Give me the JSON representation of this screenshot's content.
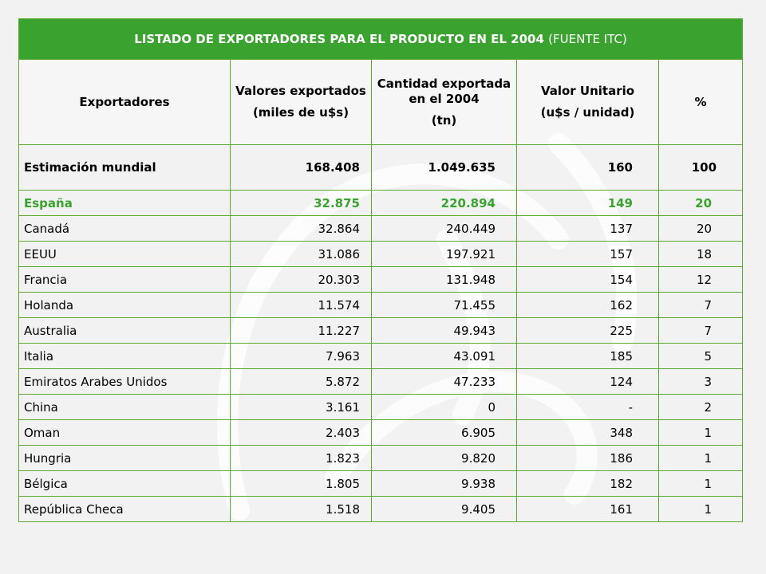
{
  "table": {
    "title_bold": "LISTADO DE EXPORTADORES PARA EL PRODUCTO EN EL 2004",
    "title_normal": "(FUENTE ITC)",
    "headers": [
      {
        "line1": "Exportadores",
        "line2": ""
      },
      {
        "line1": "Valores exportados",
        "line2": "(miles de u$s)"
      },
      {
        "line1": "Cantidad exportada en el 2004",
        "line2": "(tn)"
      },
      {
        "line1": "Valor Unitario",
        "line2": "(u$s / unidad)"
      },
      {
        "line1": "%",
        "line2": ""
      }
    ],
    "world": {
      "name": "Estimación mundial",
      "valores": "168.408",
      "cantidad": "1.049.635",
      "unitario": "160",
      "pct": "100"
    },
    "spain": {
      "name": "España",
      "valores": "32.875",
      "cantidad": "220.894",
      "unitario": "149",
      "pct": "20"
    },
    "rows": [
      {
        "name": "Canadá",
        "valores": "32.864",
        "cantidad": "240.449",
        "unitario": "137",
        "pct": "20"
      },
      {
        "name": "EEUU",
        "valores": "31.086",
        "cantidad": "197.921",
        "unitario": "157",
        "pct": "18"
      },
      {
        "name": "Francia",
        "valores": "20.303",
        "cantidad": "131.948",
        "unitario": "154",
        "pct": "12"
      },
      {
        "name": "Holanda",
        "valores": "11.574",
        "cantidad": "71.455",
        "unitario": "162",
        "pct": "7"
      },
      {
        "name": "Australia",
        "valores": "11.227",
        "cantidad": "49.943",
        "unitario": "225",
        "pct": "7"
      },
      {
        "name": "Italia",
        "valores": "7.963",
        "cantidad": "43.091",
        "unitario": "185",
        "pct": "5"
      },
      {
        "name": "Emiratos Arabes Unidos",
        "valores": "5.872",
        "cantidad": "47.233",
        "unitario": "124",
        "pct": "3"
      },
      {
        "name": "China",
        "valores": "3.161",
        "cantidad": "0",
        "unitario": "-",
        "pct": "2"
      },
      {
        "name": "Oman",
        "valores": "2.403",
        "cantidad": "6.905",
        "unitario": "348",
        "pct": "1"
      },
      {
        "name": "Hungria",
        "valores": "1.823",
        "cantidad": "9.820",
        "unitario": "186",
        "pct": "1"
      },
      {
        "name": "Bélgica",
        "valores": "1.805",
        "cantidad": "9.938",
        "unitario": "182",
        "pct": "1"
      },
      {
        "name": "República Checa",
        "valores": "1.518",
        "cantidad": "9.405",
        "unitario": "161",
        "pct": "1"
      }
    ]
  },
  "colors": {
    "title_bg": "#3aa22e",
    "border": "#5aa832",
    "spain_text": "#3aa22e",
    "page_bg": "#f2f2f2"
  }
}
